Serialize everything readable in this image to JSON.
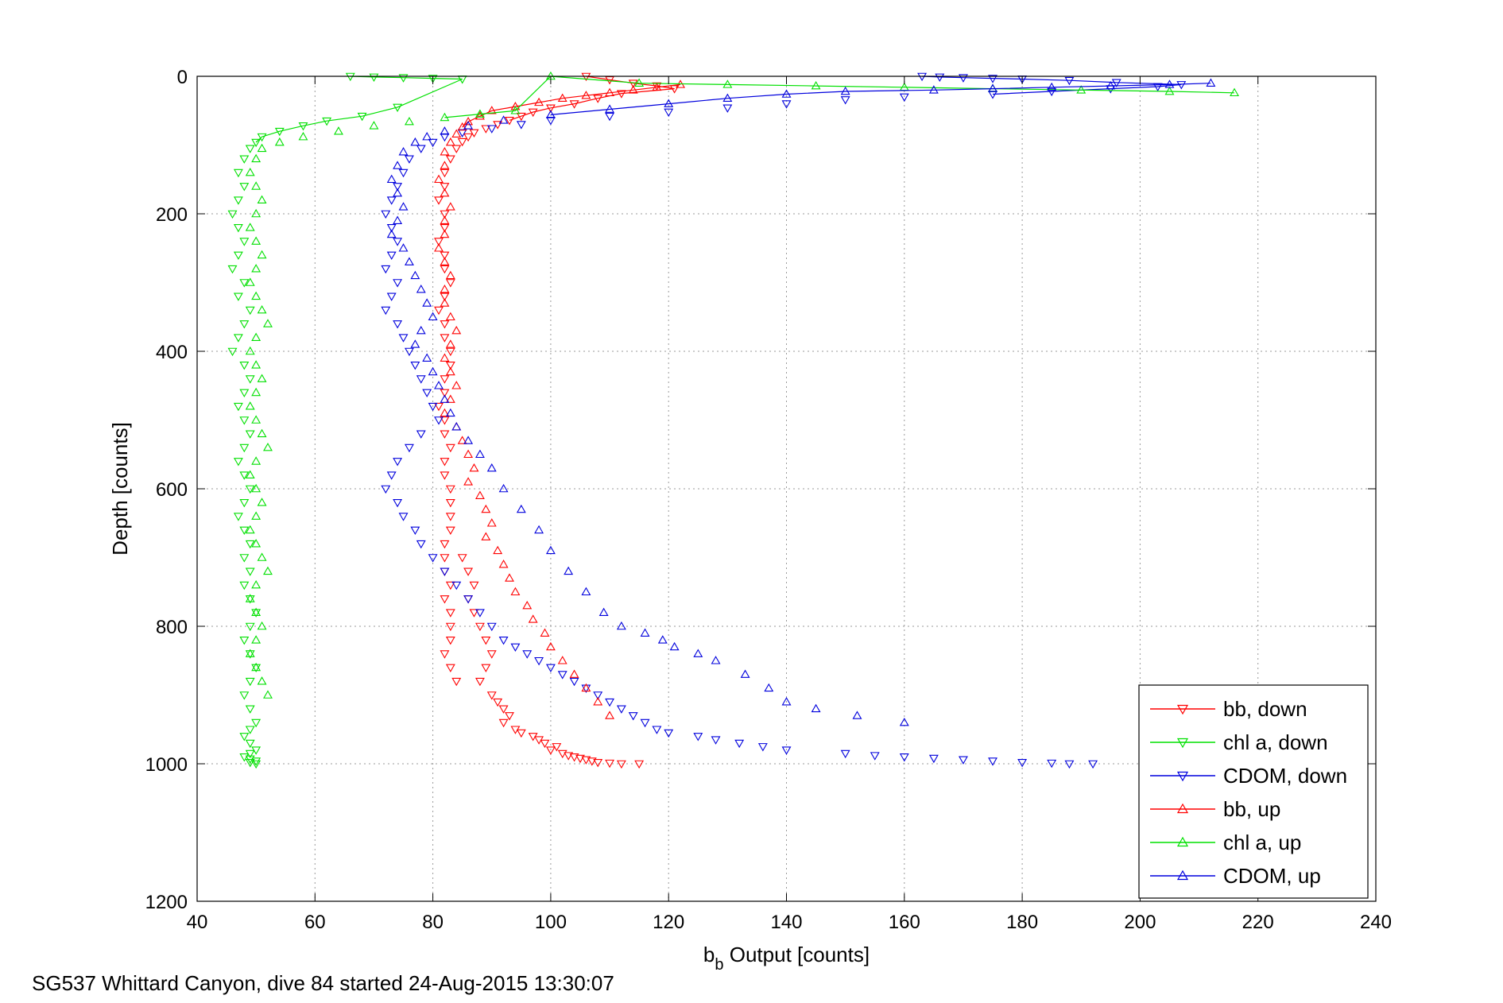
{
  "footer_text": "SG537 Whittard Canyon, dive 84 started 24-Aug-2015 13:30:07",
  "chart_data": {
    "type": "scatter",
    "title": "",
    "xlabel_main": "b",
    "xlabel_sub": "b",
    "xlabel_rest": " Output [counts]",
    "ylabel": "Depth [counts]",
    "xlim": [
      40,
      240
    ],
    "ylim": [
      0,
      1200
    ],
    "y_reversed": true,
    "grid": true,
    "legend_position": "bottom-right",
    "xticks": [
      40,
      60,
      80,
      100,
      120,
      140,
      160,
      180,
      200,
      220,
      240
    ],
    "yticks": [
      0,
      200,
      400,
      600,
      800,
      1000,
      1200
    ],
    "series": [
      {
        "name": "bb, down",
        "color": "#ff0000",
        "marker": "tri-down",
        "x": [
          106,
          110,
          114,
          118,
          121,
          112,
          108,
          104,
          100,
          97,
          95,
          93,
          91,
          89,
          87,
          86,
          85,
          84,
          83,
          82,
          82,
          81,
          82,
          82,
          81,
          82,
          82,
          83,
          82,
          81,
          82,
          82,
          83,
          83,
          82,
          82,
          81,
          82,
          82,
          83,
          82,
          82,
          83,
          83,
          83,
          83,
          82,
          82,
          82,
          83,
          82,
          83,
          83,
          83,
          82,
          83,
          84,
          85,
          86,
          87,
          86,
          87,
          88,
          89,
          90,
          89,
          88,
          90,
          91,
          92,
          93,
          92,
          94,
          95,
          97,
          98,
          99,
          101,
          100,
          102,
          103,
          104,
          105,
          106,
          107,
          108,
          110,
          112,
          115
        ],
        "y": [
          0,
          5,
          10,
          14,
          18,
          25,
          32,
          40,
          46,
          52,
          58,
          64,
          70,
          76,
          82,
          88,
          95,
          105,
          120,
          140,
          160,
          180,
          200,
          220,
          240,
          260,
          280,
          300,
          320,
          340,
          360,
          380,
          400,
          420,
          440,
          460,
          480,
          500,
          520,
          540,
          560,
          580,
          600,
          620,
          640,
          660,
          680,
          700,
          720,
          740,
          760,
          780,
          800,
          820,
          840,
          860,
          880,
          700,
          720,
          740,
          760,
          780,
          800,
          820,
          840,
          860,
          880,
          900,
          910,
          920,
          930,
          940,
          950,
          955,
          960,
          965,
          970,
          975,
          980,
          985,
          988,
          990,
          992,
          994,
          996,
          998,
          999,
          1000,
          1000
        ]
      },
      {
        "name": "chl a, down",
        "color": "#00e000",
        "marker": "tri-down",
        "x": [
          66,
          70,
          75,
          80,
          85,
          74,
          68,
          62,
          58,
          54,
          51,
          50,
          49,
          48,
          47,
          48,
          47,
          46,
          47,
          48,
          47,
          46,
          48,
          47,
          49,
          48,
          47,
          46,
          48,
          49,
          48,
          47,
          48,
          49,
          48,
          47,
          48,
          49,
          48,
          47,
          48,
          49,
          48,
          49,
          48,
          49,
          50,
          49,
          48,
          49,
          50,
          49,
          48,
          49,
          50,
          49,
          48,
          49,
          50,
          49,
          48,
          49,
          50,
          49,
          50
        ],
        "y": [
          0,
          1,
          2,
          3,
          4,
          45,
          58,
          65,
          72,
          80,
          88,
          96,
          105,
          120,
          140,
          160,
          180,
          200,
          220,
          240,
          260,
          280,
          300,
          320,
          340,
          360,
          380,
          400,
          420,
          440,
          460,
          480,
          500,
          520,
          540,
          560,
          580,
          600,
          620,
          640,
          660,
          680,
          700,
          720,
          740,
          760,
          780,
          800,
          820,
          840,
          860,
          880,
          900,
          920,
          940,
          950,
          960,
          970,
          980,
          985,
          990,
          993,
          996,
          998,
          1000
        ]
      },
      {
        "name": "CDOM, down",
        "color": "#0000dd",
        "marker": "tri-down",
        "x": [
          163,
          166,
          170,
          175,
          180,
          188,
          196,
          207,
          203,
          195,
          185,
          175,
          160,
          150,
          140,
          130,
          120,
          110,
          100,
          95,
          90,
          85,
          82,
          80,
          78,
          76,
          75,
          74,
          73,
          72,
          73,
          74,
          73,
          72,
          74,
          73,
          72,
          74,
          75,
          76,
          77,
          78,
          79,
          80,
          81,
          78,
          76,
          74,
          73,
          72,
          74,
          75,
          77,
          78,
          80,
          82,
          84,
          86,
          88,
          90,
          92,
          94,
          96,
          98,
          100,
          102,
          104,
          106,
          108,
          110,
          112,
          114,
          116,
          118,
          120,
          125,
          128,
          132,
          136,
          140,
          150,
          155,
          160,
          165,
          170,
          175,
          180,
          185,
          188,
          192
        ],
        "y": [
          0,
          1,
          2,
          3,
          4,
          6,
          9,
          12,
          15,
          18,
          22,
          26,
          30,
          34,
          40,
          46,
          52,
          58,
          64,
          70,
          76,
          82,
          88,
          96,
          105,
          120,
          140,
          160,
          180,
          200,
          220,
          240,
          260,
          280,
          300,
          320,
          340,
          360,
          380,
          400,
          420,
          440,
          460,
          480,
          500,
          520,
          540,
          560,
          580,
          600,
          620,
          640,
          660,
          680,
          700,
          720,
          740,
          760,
          780,
          800,
          820,
          830,
          840,
          850,
          860,
          870,
          880,
          890,
          900,
          910,
          920,
          930,
          940,
          950,
          955,
          960,
          965,
          970,
          975,
          980,
          985,
          988,
          990,
          992,
          994,
          996,
          998,
          999,
          1000,
          1000
        ]
      },
      {
        "name": "bb, up",
        "color": "#ff0000",
        "marker": "tri-up",
        "x": [
          122,
          118,
          114,
          110,
          106,
          102,
          98,
          94,
          90,
          88,
          86,
          85,
          84,
          83,
          82,
          82,
          81,
          82,
          83,
          82,
          82,
          81,
          82,
          83,
          82,
          82,
          83,
          84,
          83,
          82,
          83,
          84,
          83,
          82,
          84,
          85,
          86,
          87,
          86,
          88,
          89,
          90,
          89,
          91,
          92,
          93,
          94,
          96,
          97,
          99,
          100,
          102,
          104,
          106,
          108,
          110
        ],
        "y": [
          12,
          16,
          20,
          24,
          28,
          32,
          38,
          44,
          50,
          58,
          66,
          74,
          84,
          96,
          110,
          130,
          150,
          170,
          190,
          210,
          230,
          250,
          270,
          290,
          310,
          330,
          350,
          370,
          390,
          410,
          430,
          450,
          470,
          490,
          510,
          530,
          550,
          570,
          590,
          610,
          630,
          650,
          670,
          690,
          710,
          730,
          750,
          770,
          790,
          810,
          830,
          850,
          870,
          890,
          910,
          930
        ]
      },
      {
        "name": "chl a, up",
        "color": "#00e000",
        "marker": "tri-up",
        "x": [
          216,
          205,
          190,
          175,
          160,
          145,
          130,
          115,
          100,
          94,
          88,
          82,
          76,
          70,
          64,
          58,
          54,
          51,
          50,
          49,
          50,
          51,
          50,
          49,
          50,
          51,
          50,
          49,
          50,
          51,
          52,
          50,
          49,
          50,
          51,
          50,
          49,
          50,
          51,
          52,
          50,
          49,
          50,
          51,
          50,
          49,
          50,
          51,
          52,
          50,
          49,
          50,
          51,
          50,
          49,
          50,
          51,
          52
        ],
        "y": [
          24,
          22,
          20,
          18,
          16,
          14,
          12,
          10,
          0,
          50,
          55,
          60,
          66,
          72,
          80,
          88,
          96,
          105,
          120,
          140,
          160,
          180,
          200,
          220,
          240,
          260,
          280,
          300,
          320,
          340,
          360,
          380,
          400,
          420,
          440,
          460,
          480,
          500,
          520,
          540,
          560,
          580,
          600,
          620,
          640,
          660,
          680,
          700,
          720,
          740,
          760,
          780,
          800,
          820,
          840,
          860,
          880,
          900
        ]
      },
      {
        "name": "CDOM, up",
        "color": "#0000dd",
        "marker": "tri-up",
        "x": [
          212,
          205,
          195,
          185,
          175,
          165,
          150,
          140,
          130,
          120,
          110,
          100,
          92,
          86,
          82,
          79,
          77,
          75,
          74,
          73,
          74,
          75,
          74,
          73,
          75,
          76,
          77,
          78,
          79,
          80,
          78,
          77,
          79,
          80,
          81,
          82,
          83,
          84,
          86,
          88,
          90,
          92,
          95,
          98,
          100,
          103,
          106,
          109,
          112,
          116,
          119,
          121,
          125,
          128,
          133,
          137,
          140,
          145,
          152,
          160
        ],
        "y": [
          10,
          12,
          14,
          16,
          18,
          20,
          22,
          26,
          32,
          40,
          48,
          56,
          64,
          72,
          80,
          88,
          96,
          110,
          130,
          150,
          170,
          190,
          210,
          230,
          250,
          270,
          290,
          310,
          330,
          350,
          370,
          390,
          410,
          430,
          450,
          470,
          490,
          510,
          530,
          550,
          570,
          600,
          630,
          660,
          690,
          720,
          750,
          780,
          800,
          810,
          820,
          830,
          840,
          850,
          870,
          890,
          910,
          920,
          930,
          940
        ]
      }
    ]
  }
}
